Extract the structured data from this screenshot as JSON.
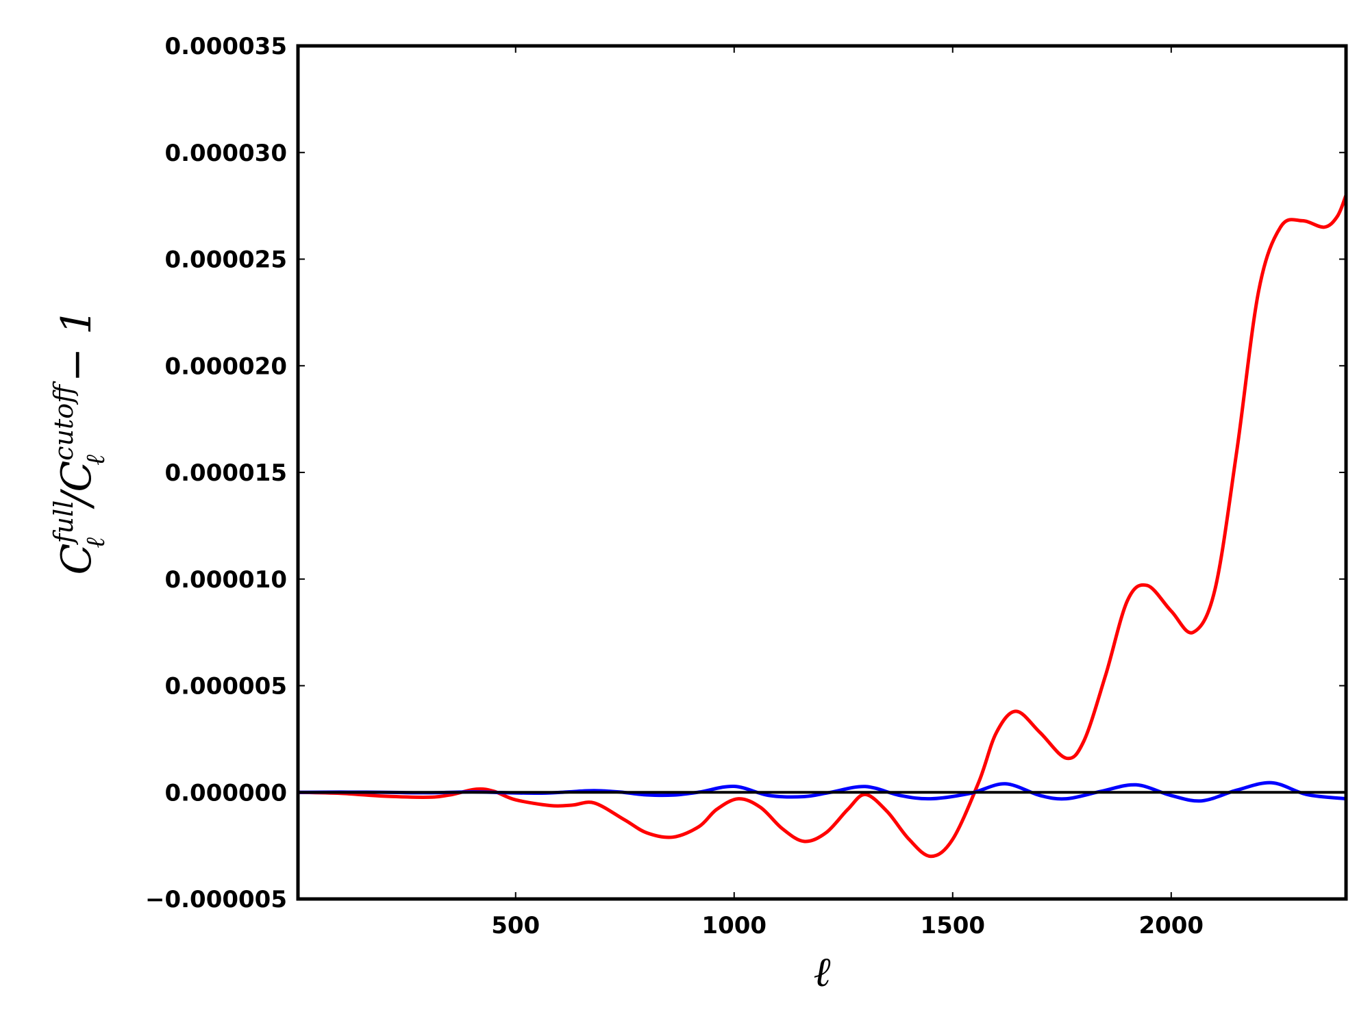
{
  "chart_data": {
    "type": "line",
    "title": "",
    "xlabel": "ℓ",
    "ylabel": "C_ℓ^{full}/C_ℓ^{cutoff} − 1",
    "ylabel_parts": {
      "base1": "C",
      "sup1": "full",
      "sub1": "ℓ",
      "slash": "/",
      "base2": "C",
      "sup2": "cutoff",
      "sub2": "ℓ",
      "tail": "− 1"
    },
    "xlim": [
      2,
      2400
    ],
    "ylim": [
      -5e-06,
      3.5e-05
    ],
    "xticks": [
      500,
      1000,
      1500,
      2000
    ],
    "xtick_labels": [
      "500",
      "1000",
      "1500",
      "2000"
    ],
    "yticks": [
      -5e-06,
      0,
      5e-06,
      1e-05,
      1.5e-05,
      2e-05,
      2.5e-05,
      3e-05,
      3.5e-05
    ],
    "ytick_labels": [
      "−0.000005",
      "0.000000",
      "0.000005",
      "0.000010",
      "0.000015",
      "0.000020",
      "0.000025",
      "0.000030",
      "0.000035"
    ],
    "grid": false,
    "legend": "none",
    "hline": 0,
    "series": [
      {
        "color": "#ff0000",
        "x": [
          2,
          100,
          200,
          300,
          350,
          410,
          450,
          500,
          580,
          630,
          680,
          750,
          800,
          860,
          920,
          960,
          1010,
          1060,
          1110,
          1160,
          1210,
          1260,
          1300,
          1350,
          1400,
          1450,
          1500,
          1560,
          1600,
          1645,
          1700,
          1760,
          1800,
          1850,
          1900,
          1945,
          2000,
          2050,
          2100,
          2150,
          2200,
          2250,
          2300,
          2350,
          2380,
          2400
        ],
        "y": [
          0,
          -5e-08,
          -1.8e-07,
          -2.3e-07,
          -1.2e-07,
          1.5e-07,
          5e-08,
          -3.5e-07,
          -6.2e-07,
          -6e-07,
          -5e-07,
          -1.3e-06,
          -1.9e-06,
          -2.1e-06,
          -1.6e-06,
          -8e-07,
          -3e-07,
          -7e-07,
          -1.7e-06,
          -2.3e-06,
          -1.9e-06,
          -8e-07,
          -1e-07,
          -9e-07,
          -2.2e-06,
          -3e-06,
          -2.2e-06,
          5e-07,
          2.8e-06,
          3.8e-06,
          2.8e-06,
          1.6e-06,
          2.4e-06,
          5.5e-06,
          9e-06,
          9.7e-06,
          8.5e-06,
          7.5e-06,
          9.5e-06,
          1.6e-05,
          2.35e-05,
          2.65e-05,
          2.68e-05,
          2.65e-05,
          2.7e-05,
          2.8e-05
        ]
      },
      {
        "color": "#0000ff",
        "x": [
          2,
          100,
          200,
          300,
          400,
          480,
          560,
          620,
          680,
          740,
          800,
          860,
          920,
          1000,
          1080,
          1160,
          1220,
          1300,
          1380,
          1450,
          1540,
          1620,
          1700,
          1760,
          1840,
          1920,
          2000,
          2070,
          2150,
          2230,
          2310,
          2400
        ],
        "y": [
          0,
          1e-08,
          0,
          -2e-08,
          2e-08,
          -2e-08,
          -4e-08,
          2e-08,
          8e-08,
          1e-08,
          -1.2e-07,
          -1.3e-07,
          1e-08,
          2.8e-07,
          -1.5e-07,
          -2e-07,
          0,
          2.7e-07,
          -1.5e-07,
          -3e-07,
          -5e-08,
          4e-07,
          -1.5e-07,
          -3e-07,
          5e-08,
          3.5e-07,
          -1.5e-07,
          -4e-07,
          1e-07,
          4.5e-07,
          -1e-07,
          -3e-07
        ]
      }
    ]
  }
}
